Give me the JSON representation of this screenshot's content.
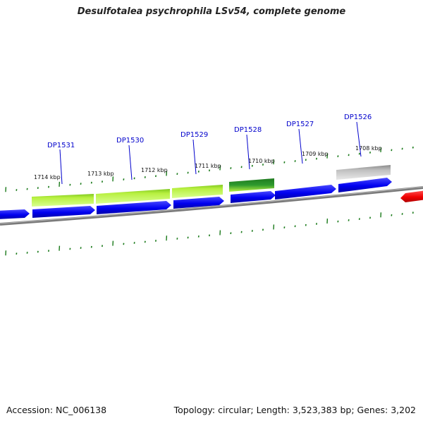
{
  "title": "Desulfotalea psychrophila LSv54, complete genome",
  "footer": {
    "accession_label": "Accession:",
    "accession_value": "NC_006138",
    "topology_text": "Topology: circular; Length: 3,523,383 bp; Genes: 3,202"
  },
  "colors": {
    "backbone": "#808080",
    "tick_marks": "#1a7a1a",
    "cds_forward": "#0000ff",
    "cds_reverse": "#ff0000",
    "cog_light_green": "#a8e830",
    "cog_dark_green": "#228b22",
    "cog_gray": "#b0b0b0",
    "gene_label": "#0000cc"
  },
  "kbp_labels": [
    "1714 kbp",
    "1713 kbp",
    "1712 kbp",
    "1711 kbp",
    "1710 kbp",
    "1709 kbp",
    "1708 kbp"
  ],
  "gene_labels": [
    "DP1531",
    "DP1530",
    "DP1529",
    "DP1528",
    "DP1527",
    "DP1526"
  ],
  "features": [
    {
      "track": "cds",
      "strand": "forward",
      "color": "cds_forward"
    },
    {
      "track": "cds",
      "strand": "forward",
      "color": "cds_forward"
    },
    {
      "track": "cds",
      "strand": "forward",
      "color": "cds_forward"
    },
    {
      "track": "cds",
      "strand": "forward",
      "color": "cds_forward"
    },
    {
      "track": "cds",
      "strand": "forward",
      "color": "cds_forward"
    },
    {
      "track": "cds",
      "strand": "forward",
      "color": "cds_forward"
    },
    {
      "track": "cds",
      "strand": "forward",
      "color": "cds_forward"
    },
    {
      "track": "cds",
      "strand": "reverse",
      "color": "cds_reverse"
    },
    {
      "track": "cog",
      "color": "cog_light_green"
    },
    {
      "track": "cog",
      "color": "cog_light_green"
    },
    {
      "track": "cog",
      "color": "cog_light_green"
    },
    {
      "track": "cog",
      "color": "cog_dark_green"
    },
    {
      "track": "cog",
      "color": "cog_gray"
    }
  ]
}
